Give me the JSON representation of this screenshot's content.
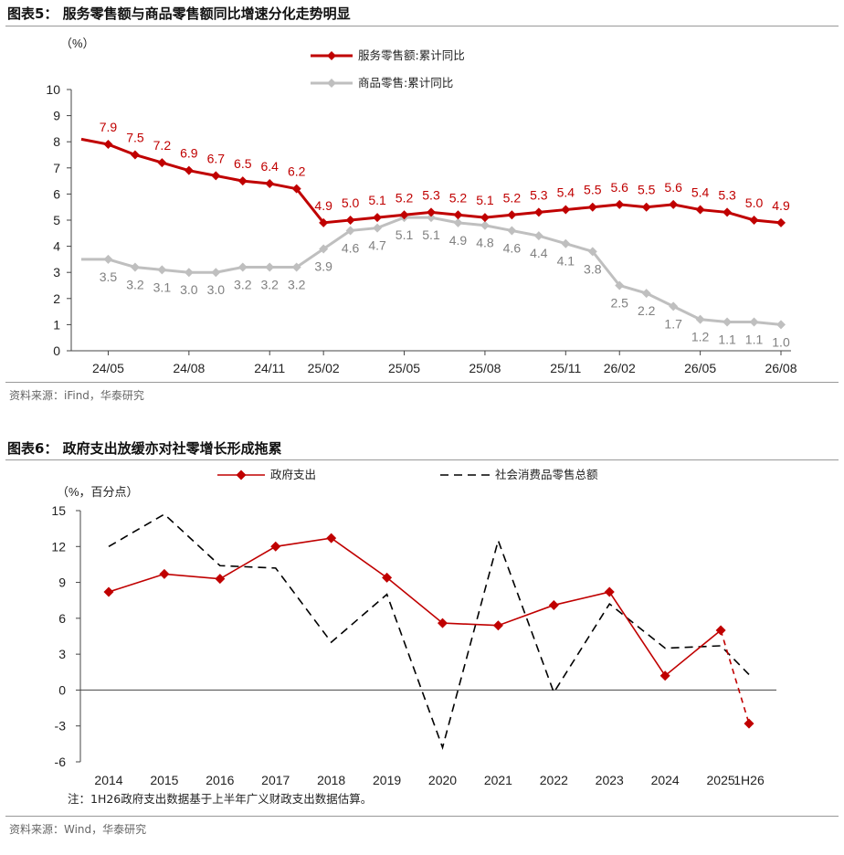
{
  "figure5": {
    "title": "图表5： 服务零售额与商品零售额同比增速分化走势明显",
    "unit": "（%）",
    "source": "资料来源：iFind，华泰研究",
    "colors": {
      "services": "#c00000",
      "goods": "#bfbfbf"
    }
  },
  "figure6": {
    "title": "图表6： 政府支出放缓亦对社零增长形成拖累",
    "unit": "（%，百分点）",
    "note": "注：1H26政府支出数据基于上半年广义财政支出数据估算。",
    "source": "资料来源：Wind，华泰研究",
    "colors": {
      "gov": "#c00000",
      "retail": "#000000"
    }
  },
  "chart_data": [
    {
      "type": "line",
      "title": "服务零售额与商品零售额同比增速分化走势明显",
      "ylabel": "（%）",
      "ylim": [
        0,
        10
      ],
      "yticks": [
        0,
        1,
        2,
        3,
        4,
        5,
        6,
        7,
        8,
        9,
        10
      ],
      "x": [
        "24/04",
        "24/05",
        "24/06",
        "24/07",
        "24/08",
        "24/09",
        "24/10",
        "24/11",
        "24/12",
        "25/02",
        "25/03",
        "25/04",
        "25/05",
        "25/06",
        "25/07",
        "25/08",
        "25/09",
        "25/10",
        "25/11",
        "25/12",
        "26/02",
        "26/03",
        "26/04",
        "26/05",
        "26/06",
        "26/07",
        "26/08"
      ],
      "xtick_labels": [
        "24/05",
        "24/08",
        "24/11",
        "25/02",
        "25/05",
        "25/08",
        "25/11",
        "26/02",
        "26/05",
        "26/08"
      ],
      "legend": "top-right",
      "series": [
        {
          "name": "服务零售额:累计同比",
          "marker": "diamond",
          "values": [
            8.1,
            7.9,
            7.5,
            7.2,
            6.9,
            6.7,
            6.5,
            6.4,
            6.2,
            4.9,
            5.0,
            5.1,
            5.2,
            5.3,
            5.2,
            5.1,
            5.2,
            5.3,
            5.4,
            5.5,
            5.6,
            5.5,
            5.6,
            5.4,
            5.3,
            5.0,
            4.9
          ],
          "data_labels": [
            null,
            "7.9",
            "7.5",
            "7.2",
            "6.9",
            "6.7",
            "6.5",
            "6.4",
            "6.2",
            "4.9",
            "5.0",
            "5.1",
            "5.2",
            "5.3",
            "5.2",
            "5.1",
            "5.2",
            "5.3",
            "5.4",
            "5.5",
            "5.6",
            "5.5",
            "5.6",
            "5.4",
            "5.3",
            "5.0",
            "4.9"
          ]
        },
        {
          "name": "商品零售:累计同比",
          "marker": "diamond",
          "values": [
            3.5,
            3.5,
            3.2,
            3.1,
            3.0,
            3.0,
            3.2,
            3.2,
            3.2,
            3.9,
            4.6,
            4.7,
            5.1,
            5.1,
            4.9,
            4.8,
            4.6,
            4.4,
            4.1,
            3.8,
            2.5,
            2.2,
            1.7,
            1.2,
            1.1,
            1.1,
            1.0
          ],
          "data_labels": [
            null,
            "3.5",
            "3.2",
            "3.1",
            "3.0",
            "3.0",
            "3.2",
            "3.2",
            "3.2",
            "3.9",
            "4.6",
            "4.7",
            "5.1",
            "5.1",
            "4.9",
            "4.8",
            "4.6",
            "4.4",
            "4.1",
            "3.8",
            "2.5",
            "2.2",
            "1.7",
            "1.2",
            "1.1",
            "1.1",
            "1.0"
          ]
        }
      ]
    },
    {
      "type": "line",
      "title": "政府支出放缓亦对社零增长形成拖累",
      "ylabel": "（%，百分点）",
      "ylim": [
        -6,
        15
      ],
      "yticks": [
        -6,
        -3,
        0,
        3,
        6,
        9,
        12,
        15
      ],
      "categories": [
        "2014",
        "2015",
        "2016",
        "2017",
        "2018",
        "2019",
        "2020",
        "2021",
        "2022",
        "2023",
        "2024",
        "2025",
        "1H26"
      ],
      "legend": "top",
      "series": [
        {
          "name": "政府支出",
          "marker": "diamond",
          "projected_last": true,
          "values": [
            8.2,
            9.7,
            9.3,
            12.0,
            12.7,
            9.4,
            5.6,
            5.4,
            7.1,
            8.2,
            1.2,
            5.0,
            -2.8
          ]
        },
        {
          "name": "社会消费品零售总额",
          "marker": "none",
          "dashed": true,
          "values": [
            12.0,
            14.7,
            10.4,
            10.2,
            4.0,
            8.0,
            -4.8,
            12.5,
            -0.2,
            7.2,
            3.5,
            3.7,
            1.3
          ]
        }
      ]
    }
  ]
}
